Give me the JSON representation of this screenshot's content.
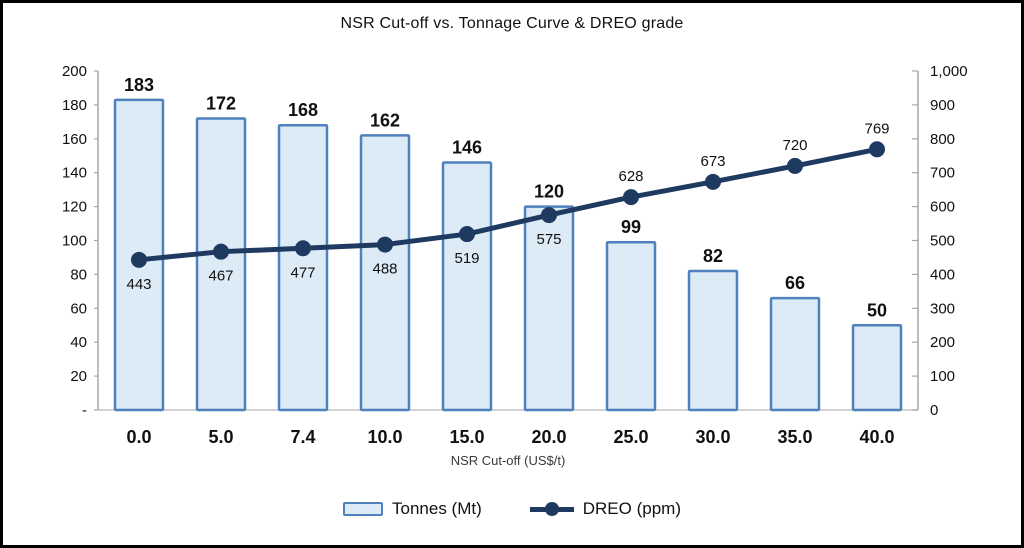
{
  "chart_data": {
    "type": "combo",
    "title": "NSR Cut-off vs. Tonnage Curve & DREO grade",
    "xlabel": "NSR Cut-off (US$/t)",
    "categories": [
      "0.0",
      "5.0",
      "7.4",
      "10.0",
      "15.0",
      "20.0",
      "25.0",
      "30.0",
      "35.0",
      "40.0"
    ],
    "series": [
      {
        "name": "Tonnes (Mt)",
        "type": "bar",
        "axis": "left",
        "values": [
          183,
          172,
          168,
          162,
          146,
          120,
          99,
          82,
          66,
          50
        ]
      },
      {
        "name": "DREO (ppm)",
        "type": "line",
        "axis": "right",
        "values": [
          443,
          467,
          477,
          488,
          519,
          575,
          628,
          673,
          720,
          769
        ],
        "label_positions": [
          "below",
          "below",
          "below",
          "below",
          "below",
          "below",
          "above",
          "above",
          "above",
          "above"
        ]
      }
    ],
    "left_axis": {
      "min": 0,
      "max": 200,
      "step": 20,
      "tick_labels": [
        "200",
        "180",
        "160",
        "140",
        "120",
        "100",
        "80",
        "60",
        "40",
        "20",
        "-"
      ]
    },
    "right_axis": {
      "min": 0,
      "max": 1000,
      "step": 100,
      "tick_labels": [
        "1,000",
        "900",
        "800",
        "700",
        "600",
        "500",
        "400",
        "300",
        "200",
        "100",
        "0"
      ]
    },
    "legend_position": "bottom",
    "grid": false,
    "colors": {
      "bar_fill": "#dcebf5",
      "bar_border": "#4f81bd",
      "line": "#1f3a60",
      "axis": "#a8a8a8",
      "baseline": "#c4c4c4",
      "text": "#111111"
    }
  }
}
